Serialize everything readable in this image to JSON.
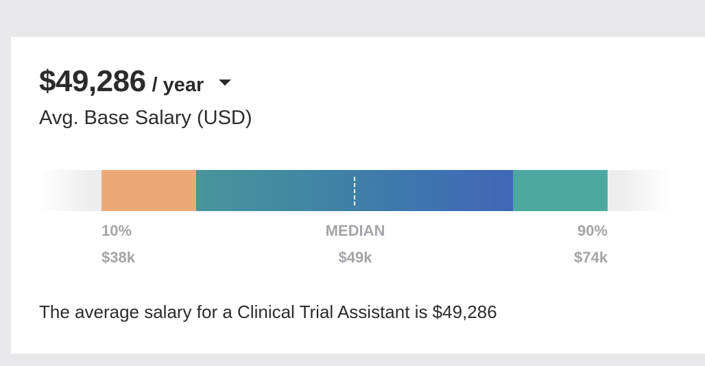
{
  "salary": {
    "amount": "$49,286",
    "period": "/ year",
    "subtitle": "Avg. Base Salary (USD)"
  },
  "range": {
    "low_label": "10%",
    "low_value": "$38k",
    "median_label": "MEDIAN",
    "median_value": "$49k",
    "high_label": "90%",
    "high_value": "$74k"
  },
  "colors": {
    "low_segment": "#eca978",
    "mid_segment_start": "#47969a",
    "mid_segment_end": "#3f66b8",
    "high_segment": "#4da8a2",
    "label_gray": "#a3a4aa",
    "text_dark": "#2b2b2b"
  },
  "icons": {
    "period_dropdown": "caret-down-icon"
  },
  "description": "The average salary for a Clinical Trial Assistant is $49,286"
}
